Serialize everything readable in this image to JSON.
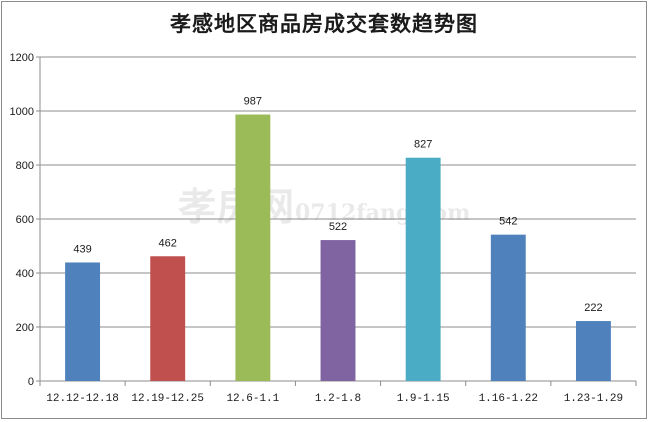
{
  "title": "孝感地区商品房成交套数趋势图",
  "watermark": {
    "name": "孝房网",
    "url": "0712fang.com"
  },
  "chart_data": {
    "type": "bar",
    "title": "孝感地区商品房成交套数趋势图",
    "xlabel": "",
    "ylabel": "",
    "ylim": [
      0,
      1200
    ],
    "yticks": [
      0,
      200,
      400,
      600,
      800,
      1000,
      1200
    ],
    "grid": true,
    "legend": "none",
    "categories": [
      "12.12-12.18",
      "12.19-12.25",
      "12.6-1.1",
      "1.2-1.8",
      "1.9-1.15",
      "1.16-1.22",
      "1.23-1.29"
    ],
    "values": [
      439,
      462,
      987,
      522,
      827,
      542,
      222
    ],
    "data_labels": [
      "439",
      "462",
      "987",
      "522",
      "827",
      "542",
      "222"
    ],
    "colors": [
      "#4f81bd",
      "#c0504d",
      "#9bbb59",
      "#8064a2",
      "#4bacc6",
      "#4f81bd",
      "#4f81bd"
    ]
  }
}
